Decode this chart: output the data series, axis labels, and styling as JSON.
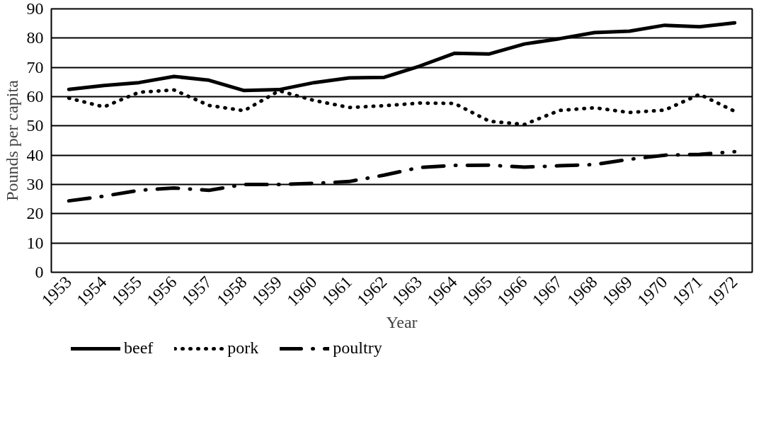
{
  "chart_data": {
    "type": "line",
    "xlabel": "Year",
    "ylabel": "Pounds per capita",
    "categories": [
      "1953",
      "1954",
      "1955",
      "1956",
      "1957",
      "1958",
      "1959",
      "1960",
      "1961",
      "1962",
      "1963",
      "1964",
      "1965",
      "1966",
      "1967",
      "1968",
      "1969",
      "1970",
      "1971",
      "1972"
    ],
    "series": [
      {
        "name": "beef",
        "color": "#000000",
        "line_style": "solid",
        "values": [
          62.5,
          63.8,
          64.8,
          66.9,
          65.6,
          62.1,
          62.4,
          64.8,
          66.4,
          66.6,
          70.4,
          74.8,
          74.6,
          78.0,
          79.8,
          81.9,
          82.4,
          84.4,
          83.9,
          85.2
        ]
      },
      {
        "name": "pork",
        "color": "#000000",
        "line_style": "dotted",
        "values": [
          59.5,
          56.5,
          61.5,
          62.3,
          57.0,
          55.2,
          62.0,
          58.7,
          56.3,
          56.9,
          57.8,
          57.7,
          51.6,
          50.5,
          55.3,
          56.2,
          54.6,
          55.4,
          60.8,
          55.0
        ]
      },
      {
        "name": "poultry",
        "color": "#000000",
        "line_style": "dashdot",
        "values": [
          24.4,
          26.0,
          28.0,
          28.8,
          28.0,
          30.0,
          30.0,
          30.4,
          31.0,
          33.2,
          35.8,
          36.5,
          36.6,
          35.9,
          36.4,
          36.8,
          38.6,
          40.0,
          40.3,
          41.2
        ]
      }
    ],
    "ylim": [
      0,
      90
    ],
    "yticks": [
      0,
      10,
      20,
      30,
      40,
      50,
      60,
      70,
      80,
      90
    ],
    "grid": "y",
    "legend": "bottom",
    "marker": "none"
  }
}
